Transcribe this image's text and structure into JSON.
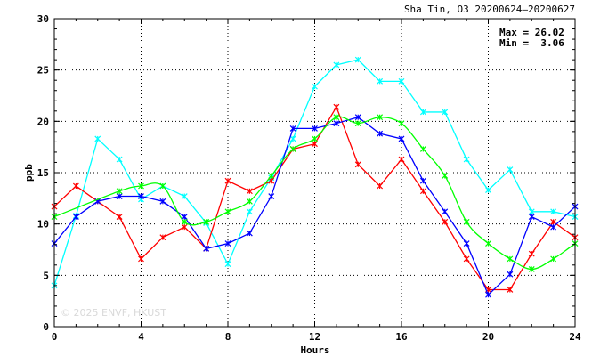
{
  "chart_data": {
    "type": "line",
    "title": "Sha Tin, O3 20200624–20200627",
    "xlabel": "Hours",
    "ylabel": "ppb",
    "xlim": [
      0,
      24
    ],
    "ylim": [
      0,
      30
    ],
    "xticks": [
      0,
      4,
      8,
      12,
      16,
      20,
      24
    ],
    "yticks": [
      0,
      5,
      10,
      15,
      20,
      25,
      30
    ],
    "grid": true,
    "stats": {
      "max_label": "Max = 26.02",
      "min_label": "Min =  3.06"
    },
    "watermark": "© 2025 ENVF, HKUST",
    "x": [
      0,
      1,
      2,
      3,
      4,
      5,
      6,
      7,
      8,
      9,
      10,
      11,
      12,
      13,
      14,
      15,
      16,
      17,
      18,
      19,
      20,
      21,
      22,
      23,
      24
    ],
    "series": [
      {
        "color": "#00ffff",
        "marker": "cross",
        "values": [
          4.0,
          10.8,
          18.3,
          16.3,
          12.4,
          13.7,
          12.7,
          10.1,
          6.1,
          11.2,
          14.5,
          18.3,
          23.4,
          25.5,
          26.0,
          23.9,
          23.9,
          20.9,
          20.9,
          16.3,
          13.3,
          15.3,
          11.2,
          11.2,
          10.7
        ]
      },
      {
        "color": "#ff0000",
        "marker": "cross",
        "values": [
          11.7,
          13.7,
          12.2,
          10.7,
          6.6,
          8.7,
          9.7,
          7.6,
          14.2,
          13.2,
          14.2,
          17.3,
          17.8,
          21.4,
          15.8,
          13.7,
          16.3,
          13.2,
          10.2,
          6.6,
          3.6,
          3.6,
          7.1,
          10.2,
          8.7
        ]
      },
      {
        "color": "#0000ff",
        "marker": "cross",
        "values": [
          8.1,
          10.7,
          12.2,
          12.7,
          12.7,
          12.2,
          10.7,
          7.6,
          8.1,
          9.1,
          12.7,
          19.3,
          19.3,
          19.8,
          20.4,
          18.8,
          18.3,
          14.2,
          11.2,
          8.1,
          3.1,
          5.1,
          10.7,
          9.7,
          11.7
        ]
      },
      {
        "color": "#00ff00",
        "marker": "cross",
        "smooth": true,
        "values": [
          10.7,
          null,
          null,
          13.2,
          13.7,
          13.7,
          10.2,
          10.2,
          11.2,
          12.2,
          14.7,
          17.3,
          18.3,
          20.4,
          19.8,
          20.4,
          19.8,
          17.3,
          14.7,
          10.2,
          8.1,
          6.6,
          5.6,
          6.6,
          8.1
        ]
      }
    ]
  }
}
